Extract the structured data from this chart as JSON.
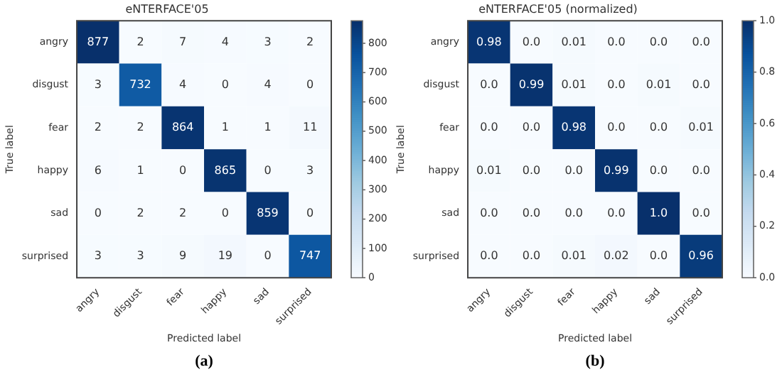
{
  "chart_data": [
    {
      "type": "heatmap",
      "title": "eNTERFACE'05",
      "xlabel": "Predicted label",
      "ylabel": "True label",
      "categories": [
        "angry",
        "disgust",
        "fear",
        "happy",
        "sad",
        "surprised"
      ],
      "y_categories": [
        "angry",
        "disgust",
        "fear",
        "happy",
        "sad",
        "surprised"
      ],
      "cells": [
        [
          877,
          2,
          7,
          4,
          3,
          2
        ],
        [
          3,
          732,
          4,
          0,
          4,
          0
        ],
        [
          2,
          2,
          864,
          1,
          1,
          11
        ],
        [
          6,
          1,
          0,
          865,
          0,
          3
        ],
        [
          0,
          2,
          2,
          0,
          859,
          0
        ],
        [
          3,
          3,
          9,
          19,
          0,
          747
        ]
      ],
      "data_labels": true,
      "clim": [
        0,
        877
      ],
      "cticks": [
        0,
        100,
        200,
        300,
        400,
        500,
        600,
        700,
        800
      ],
      "annotations": [
        "(a)"
      ]
    },
    {
      "type": "heatmap",
      "title": "eNTERFACE'05 (normalized)",
      "xlabel": "Predicted label",
      "ylabel": "True label",
      "categories": [
        "angry",
        "disgust",
        "fear",
        "happy",
        "sad",
        "surprised"
      ],
      "y_categories": [
        "angry",
        "disgust",
        "fear",
        "happy",
        "sad",
        "surprised"
      ],
      "cells": [
        [
          0.98,
          0,
          0.01,
          0,
          0,
          0
        ],
        [
          0,
          0.99,
          0.01,
          0,
          0.01,
          0
        ],
        [
          0,
          0,
          0.98,
          0,
          0,
          0.01
        ],
        [
          0.01,
          0,
          0,
          0.99,
          0,
          0
        ],
        [
          0,
          0,
          0,
          0,
          1,
          0
        ],
        [
          0,
          0,
          0.01,
          0.02,
          0,
          0.96
        ]
      ],
      "cell_labels": [
        [
          "0.98",
          "0.0",
          "0.01",
          "0.0",
          "0.0",
          "0.0"
        ],
        [
          "0.0",
          "0.99",
          "0.01",
          "0.0",
          "0.01",
          "0.0"
        ],
        [
          "0.0",
          "0.0",
          "0.98",
          "0.0",
          "0.0",
          "0.01"
        ],
        [
          "0.01",
          "0.0",
          "0.0",
          "0.99",
          "0.0",
          "0.0"
        ],
        [
          "0.0",
          "0.0",
          "0.0",
          "0.0",
          "1.0",
          "0.0"
        ],
        [
          "0.0",
          "0.0",
          "0.01",
          "0.02",
          "0.0",
          "0.96"
        ]
      ],
      "clim": [
        0,
        1
      ],
      "cticks": [
        {
          "value": 0,
          "label": "0.0"
        },
        0.2,
        0.4,
        0.6,
        0.8,
        {
          "value": 1,
          "label": "1.0"
        }
      ],
      "annotations": [
        "(b)"
      ]
    }
  ]
}
